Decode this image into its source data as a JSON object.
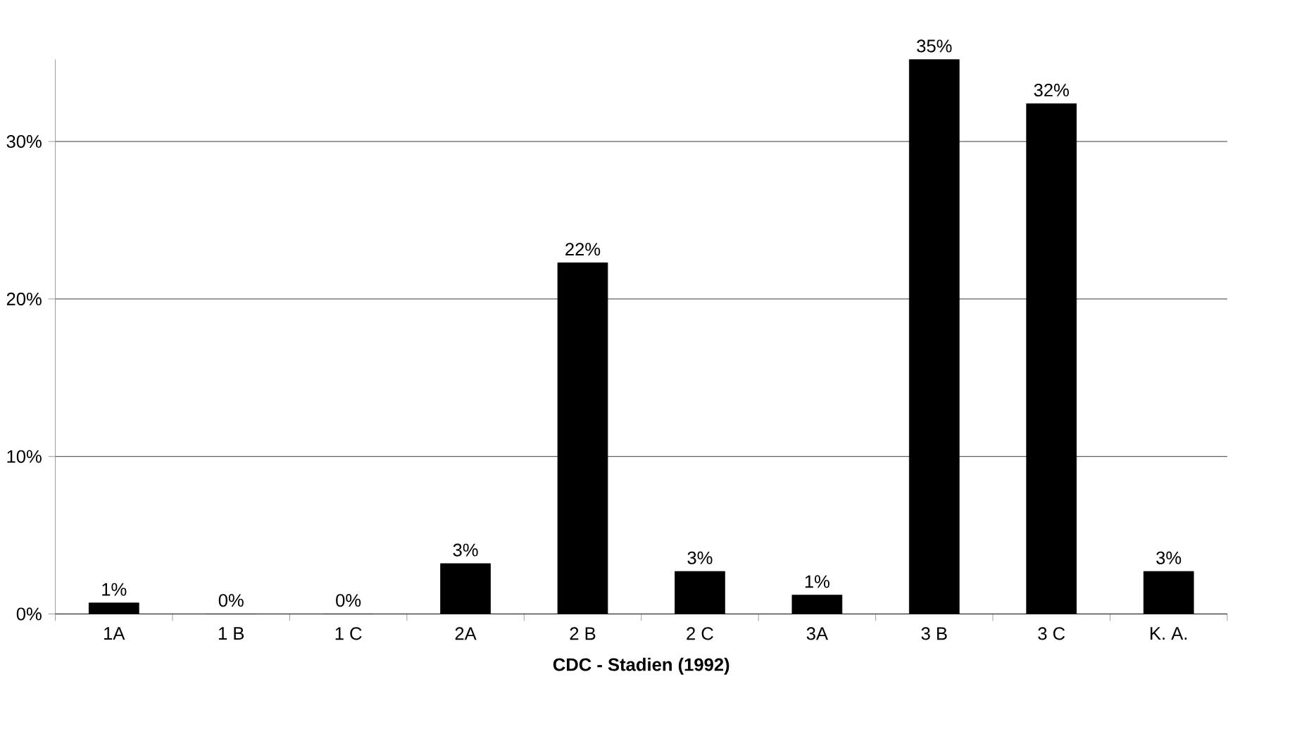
{
  "chart_data": {
    "type": "bar",
    "xlabel": "CDC - Stadien (1992)",
    "categories": [
      "1A",
      "1 B",
      "1 C",
      "2A",
      "2 B",
      "2 C",
      "3A",
      "3 B",
      "3 C",
      "K. A."
    ],
    "values": [
      0.7,
      0,
      0,
      3.2,
      22.3,
      2.7,
      1.2,
      35.2,
      32.4,
      2.7
    ],
    "value_labels": [
      "1%",
      "0%",
      "0%",
      "3%",
      "22%",
      "3%",
      "1%",
      "35%",
      "32%",
      "3%"
    ],
    "color": "#000000",
    "ylim": [
      0,
      35.2
    ],
    "yticks": [
      {
        "value": 0,
        "label": "0%"
      },
      {
        "value": 10,
        "label": "10%"
      },
      {
        "value": 20,
        "label": "20%"
      },
      {
        "value": 30,
        "label": "30%"
      }
    ],
    "grid": "y"
  }
}
